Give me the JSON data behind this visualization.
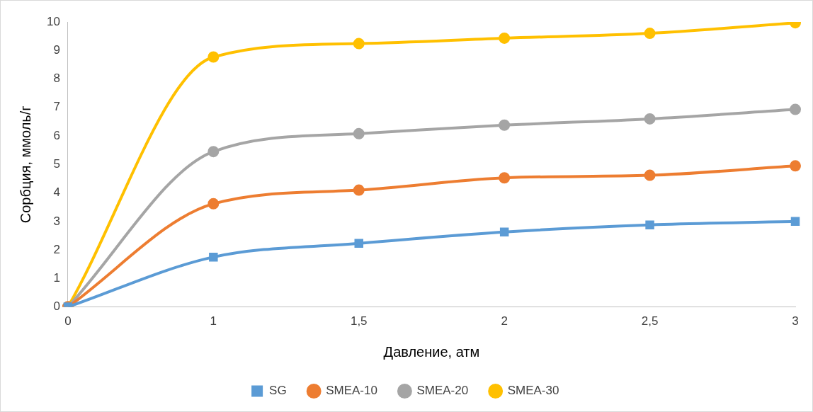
{
  "chart_data": {
    "type": "line",
    "xlabel": "Давление, атм",
    "ylabel": "Сорбция, ммоль/г",
    "categories": [
      "0",
      "1",
      "1,5",
      "2",
      "2,5",
      "3"
    ],
    "series": [
      {
        "name": "SG",
        "color": "#5b9bd5",
        "marker": "square",
        "values": [
          0,
          1.75,
          2.23,
          2.63,
          2.88,
          3.0
        ]
      },
      {
        "name": "SMEA-10",
        "color": "#ed7d31",
        "marker": "circle",
        "values": [
          0,
          3.62,
          4.1,
          4.53,
          4.62,
          4.95
        ]
      },
      {
        "name": "SMEA-20",
        "color": "#a5a5a5",
        "marker": "circle",
        "values": [
          0,
          5.45,
          6.08,
          6.38,
          6.6,
          6.93
        ]
      },
      {
        "name": "SMEA-30",
        "color": "#ffc000",
        "marker": "circle",
        "values": [
          0,
          8.77,
          9.24,
          9.43,
          9.6,
          9.97
        ]
      }
    ],
    "ylim": [
      0,
      10
    ],
    "yticks": [
      0,
      1,
      2,
      3,
      4,
      5,
      6,
      7,
      8,
      9,
      10
    ],
    "grid": false,
    "legend": "bottom"
  }
}
